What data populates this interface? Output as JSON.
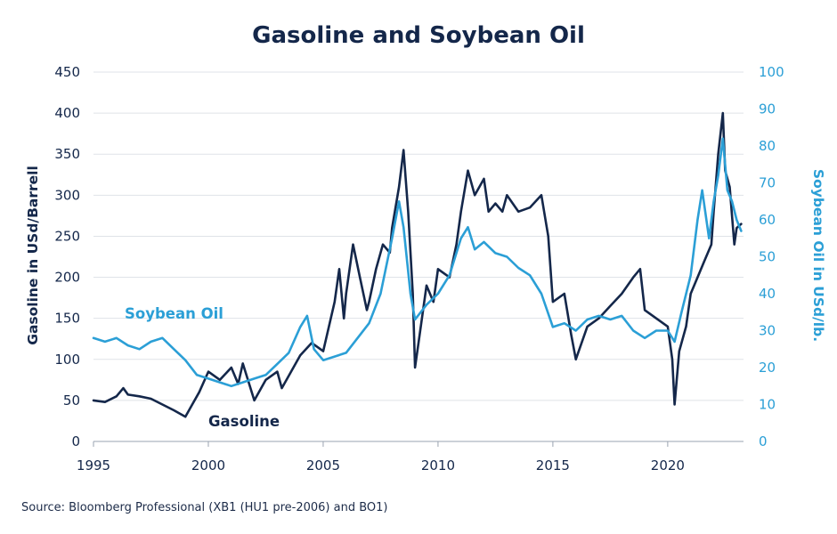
{
  "chart_data": {
    "type": "line",
    "title": "Gasoline and Soybean Oil",
    "ylabel_left": "Gasoline in USd/Barrell",
    "ylabel_right": "Soybean Oil in USd/lb.",
    "ylim_left": [
      0,
      450
    ],
    "ylim_right": [
      0,
      100
    ],
    "xlim": [
      1995,
      2023.3
    ],
    "x_ticks": [
      "1995",
      "2000",
      "2005",
      "2010",
      "2015",
      "2020"
    ],
    "y_ticks_left": [
      "0",
      "50",
      "100",
      "150",
      "200",
      "250",
      "300",
      "350",
      "400",
      "450"
    ],
    "y_ticks_right": [
      "0",
      "10",
      "20",
      "30",
      "40",
      "50",
      "60",
      "70",
      "80",
      "90",
      "100"
    ],
    "grid": true,
    "colors": {
      "gasoline": "#14274a",
      "soybean_oil": "#2b9fd6"
    },
    "series": [
      {
        "name": "Gasoline",
        "axis": "left",
        "label": "Gasoline",
        "x": [
          1995,
          1995.5,
          1996,
          1996.3,
          1996.5,
          1997,
          1997.5,
          1998,
          1998.5,
          1999,
          1999.3,
          1999.6,
          2000,
          2000.5,
          2001,
          2001.3,
          2001.5,
          2002,
          2002.5,
          2003,
          2003.2,
          2003.5,
          2004,
          2004.5,
          2005,
          2005.5,
          2005.7,
          2005.9,
          2006,
          2006.3,
          2006.6,
          2006.9,
          2007,
          2007.3,
          2007.6,
          2007.9,
          2008,
          2008.3,
          2008.5,
          2008.7,
          2008.9,
          2009,
          2009.2,
          2009.5,
          2009.8,
          2010,
          2010.5,
          2010.8,
          2011,
          2011.3,
          2011.6,
          2012,
          2012.2,
          2012.5,
          2012.8,
          2013,
          2013.5,
          2014,
          2014.5,
          2014.8,
          2015,
          2015.5,
          2015.8,
          2016,
          2016.5,
          2017,
          2017.5,
          2018,
          2018.5,
          2018.8,
          2019,
          2019.5,
          2020,
          2020.2,
          2020.3,
          2020.5,
          2020.8,
          2021,
          2021.3,
          2021.6,
          2021.9,
          2022,
          2022.2,
          2022.4,
          2022.5,
          2022.7,
          2022.9,
          2023,
          2023.2
        ],
        "y": [
          50,
          48,
          55,
          65,
          57,
          55,
          52,
          45,
          38,
          30,
          45,
          60,
          85,
          75,
          90,
          70,
          95,
          50,
          75,
          85,
          65,
          80,
          105,
          120,
          110,
          170,
          210,
          150,
          180,
          240,
          200,
          160,
          170,
          210,
          240,
          230,
          260,
          310,
          355,
          280,
          180,
          90,
          130,
          190,
          170,
          210,
          200,
          240,
          280,
          330,
          300,
          320,
          280,
          290,
          280,
          300,
          280,
          285,
          300,
          250,
          170,
          180,
          130,
          100,
          140,
          150,
          165,
          180,
          200,
          210,
          160,
          150,
          140,
          100,
          45,
          110,
          140,
          180,
          200,
          220,
          240,
          280,
          350,
          400,
          330,
          310,
          240,
          260,
          265
        ]
      },
      {
        "name": "Soybean Oil",
        "axis": "right",
        "label": "Soybean Oil",
        "x": [
          1995,
          1995.5,
          1996,
          1996.5,
          1997,
          1997.5,
          1998,
          1998.5,
          1999,
          1999.5,
          2000,
          2000.5,
          2001,
          2001.5,
          2002,
          2002.5,
          2003,
          2003.5,
          2004,
          2004.3,
          2004.6,
          2005,
          2005.5,
          2006,
          2006.5,
          2007,
          2007.5,
          2008,
          2008.3,
          2008.5,
          2008.8,
          2009,
          2009.5,
          2010,
          2010.5,
          2011,
          2011.3,
          2011.6,
          2012,
          2012.5,
          2013,
          2013.5,
          2014,
          2014.5,
          2015,
          2015.5,
          2016,
          2016.5,
          2017,
          2017.5,
          2018,
          2018.5,
          2019,
          2019.5,
          2020,
          2020.3,
          2020.6,
          2021,
          2021.3,
          2021.5,
          2021.8,
          2022,
          2022.2,
          2022.4,
          2022.6,
          2022.8,
          2023,
          2023.2
        ],
        "y": [
          28,
          27,
          28,
          26,
          25,
          27,
          28,
          25,
          22,
          18,
          17,
          16,
          15,
          16,
          17,
          18,
          21,
          24,
          31,
          34,
          25,
          22,
          23,
          24,
          28,
          32,
          40,
          55,
          65,
          58,
          40,
          33,
          37,
          40,
          45,
          55,
          58,
          52,
          54,
          51,
          50,
          47,
          45,
          40,
          31,
          32,
          30,
          33,
          34,
          33,
          34,
          30,
          28,
          30,
          30,
          27,
          35,
          45,
          60,
          68,
          55,
          65,
          72,
          82,
          68,
          65,
          60,
          57
        ]
      }
    ]
  },
  "source": "Source: Bloomberg Professional  (XB1 (HU1 pre-2006) and BO1)"
}
